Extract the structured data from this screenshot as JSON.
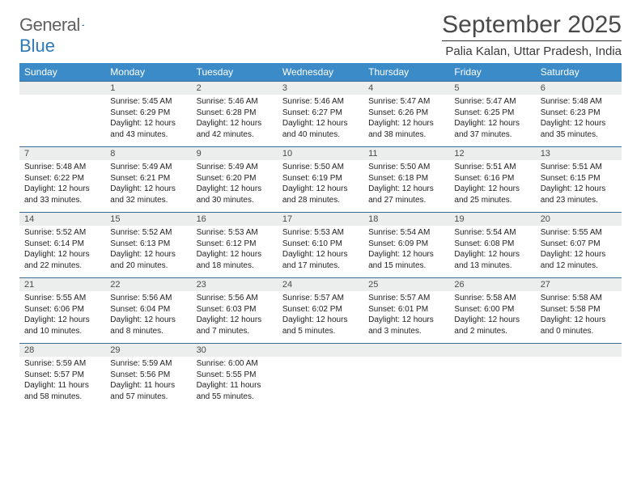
{
  "brand": {
    "part1": "General",
    "part2": "Blue"
  },
  "title": "September 2025",
  "location": "Palia Kalan, Uttar Pradesh, India",
  "palette": {
    "header_bg": "#3b8bc8",
    "header_fg": "#ffffff",
    "daynum_bg": "#eceded",
    "rule": "#3b6d94",
    "text": "#222222"
  },
  "weekdays": [
    "Sunday",
    "Monday",
    "Tuesday",
    "Wednesday",
    "Thursday",
    "Friday",
    "Saturday"
  ],
  "weeks": [
    [
      null,
      {
        "n": "1",
        "sr": "5:45 AM",
        "ss": "6:29 PM",
        "dl": "12 hours and 43 minutes."
      },
      {
        "n": "2",
        "sr": "5:46 AM",
        "ss": "6:28 PM",
        "dl": "12 hours and 42 minutes."
      },
      {
        "n": "3",
        "sr": "5:46 AM",
        "ss": "6:27 PM",
        "dl": "12 hours and 40 minutes."
      },
      {
        "n": "4",
        "sr": "5:47 AM",
        "ss": "6:26 PM",
        "dl": "12 hours and 38 minutes."
      },
      {
        "n": "5",
        "sr": "5:47 AM",
        "ss": "6:25 PM",
        "dl": "12 hours and 37 minutes."
      },
      {
        "n": "6",
        "sr": "5:48 AM",
        "ss": "6:23 PM",
        "dl": "12 hours and 35 minutes."
      }
    ],
    [
      {
        "n": "7",
        "sr": "5:48 AM",
        "ss": "6:22 PM",
        "dl": "12 hours and 33 minutes."
      },
      {
        "n": "8",
        "sr": "5:49 AM",
        "ss": "6:21 PM",
        "dl": "12 hours and 32 minutes."
      },
      {
        "n": "9",
        "sr": "5:49 AM",
        "ss": "6:20 PM",
        "dl": "12 hours and 30 minutes."
      },
      {
        "n": "10",
        "sr": "5:50 AM",
        "ss": "6:19 PM",
        "dl": "12 hours and 28 minutes."
      },
      {
        "n": "11",
        "sr": "5:50 AM",
        "ss": "6:18 PM",
        "dl": "12 hours and 27 minutes."
      },
      {
        "n": "12",
        "sr": "5:51 AM",
        "ss": "6:16 PM",
        "dl": "12 hours and 25 minutes."
      },
      {
        "n": "13",
        "sr": "5:51 AM",
        "ss": "6:15 PM",
        "dl": "12 hours and 23 minutes."
      }
    ],
    [
      {
        "n": "14",
        "sr": "5:52 AM",
        "ss": "6:14 PM",
        "dl": "12 hours and 22 minutes."
      },
      {
        "n": "15",
        "sr": "5:52 AM",
        "ss": "6:13 PM",
        "dl": "12 hours and 20 minutes."
      },
      {
        "n": "16",
        "sr": "5:53 AM",
        "ss": "6:12 PM",
        "dl": "12 hours and 18 minutes."
      },
      {
        "n": "17",
        "sr": "5:53 AM",
        "ss": "6:10 PM",
        "dl": "12 hours and 17 minutes."
      },
      {
        "n": "18",
        "sr": "5:54 AM",
        "ss": "6:09 PM",
        "dl": "12 hours and 15 minutes."
      },
      {
        "n": "19",
        "sr": "5:54 AM",
        "ss": "6:08 PM",
        "dl": "12 hours and 13 minutes."
      },
      {
        "n": "20",
        "sr": "5:55 AM",
        "ss": "6:07 PM",
        "dl": "12 hours and 12 minutes."
      }
    ],
    [
      {
        "n": "21",
        "sr": "5:55 AM",
        "ss": "6:06 PM",
        "dl": "12 hours and 10 minutes."
      },
      {
        "n": "22",
        "sr": "5:56 AM",
        "ss": "6:04 PM",
        "dl": "12 hours and 8 minutes."
      },
      {
        "n": "23",
        "sr": "5:56 AM",
        "ss": "6:03 PM",
        "dl": "12 hours and 7 minutes."
      },
      {
        "n": "24",
        "sr": "5:57 AM",
        "ss": "6:02 PM",
        "dl": "12 hours and 5 minutes."
      },
      {
        "n": "25",
        "sr": "5:57 AM",
        "ss": "6:01 PM",
        "dl": "12 hours and 3 minutes."
      },
      {
        "n": "26",
        "sr": "5:58 AM",
        "ss": "6:00 PM",
        "dl": "12 hours and 2 minutes."
      },
      {
        "n": "27",
        "sr": "5:58 AM",
        "ss": "5:58 PM",
        "dl": "12 hours and 0 minutes."
      }
    ],
    [
      {
        "n": "28",
        "sr": "5:59 AM",
        "ss": "5:57 PM",
        "dl": "11 hours and 58 minutes."
      },
      {
        "n": "29",
        "sr": "5:59 AM",
        "ss": "5:56 PM",
        "dl": "11 hours and 57 minutes."
      },
      {
        "n": "30",
        "sr": "6:00 AM",
        "ss": "5:55 PM",
        "dl": "11 hours and 55 minutes."
      },
      null,
      null,
      null,
      null
    ]
  ],
  "labels": {
    "sunrise": "Sunrise:",
    "sunset": "Sunset:",
    "daylight": "Daylight:"
  }
}
